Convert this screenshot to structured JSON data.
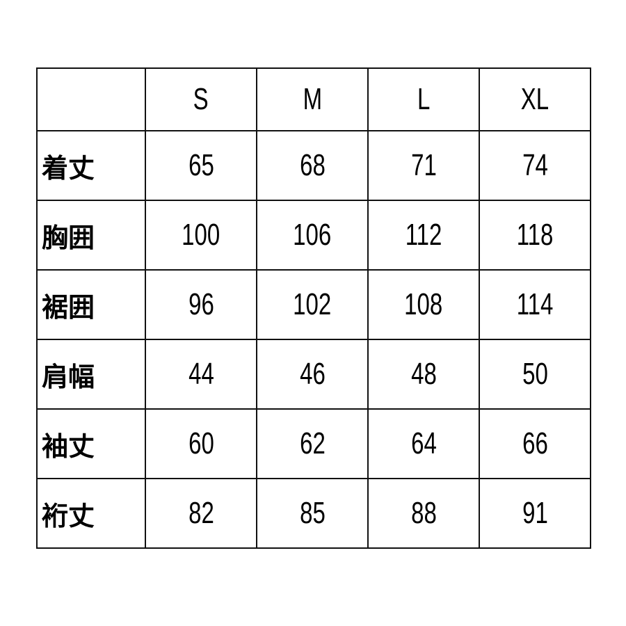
{
  "table": {
    "headers": [
      "",
      "S",
      "M",
      "L",
      "XL"
    ],
    "rows": [
      {
        "label": "着丈",
        "values": [
          "65",
          "68",
          "71",
          "74"
        ]
      },
      {
        "label": "胸囲",
        "values": [
          "100",
          "106",
          "112",
          "118"
        ]
      },
      {
        "label": "裾囲",
        "values": [
          "96",
          "102",
          "108",
          "114"
        ]
      },
      {
        "label": "肩幅",
        "values": [
          "44",
          "46",
          "48",
          "50"
        ]
      },
      {
        "label": "袖丈",
        "values": [
          "60",
          "62",
          "64",
          "66"
        ]
      },
      {
        "label": "裄丈",
        "values": [
          "82",
          "85",
          "88",
          "91"
        ]
      }
    ]
  }
}
